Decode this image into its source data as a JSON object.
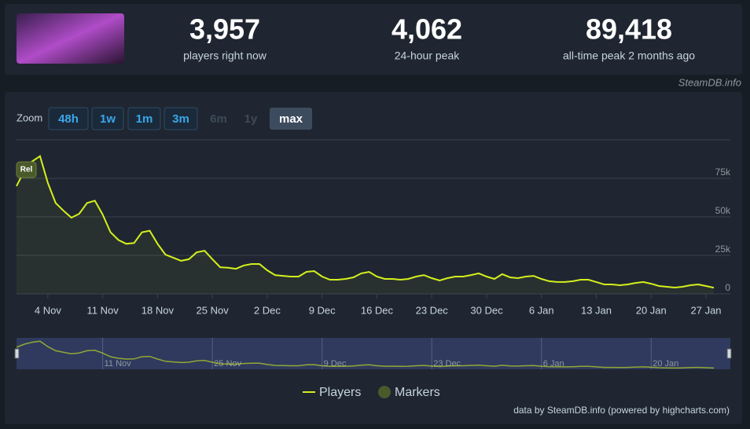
{
  "header": {
    "stats": [
      {
        "value": "3,957",
        "label": "players right now"
      },
      {
        "value": "4,062",
        "label": "24-hour peak"
      },
      {
        "value": "89,418",
        "label": "all-time peak 2 months ago"
      }
    ],
    "source": "SteamDB.info"
  },
  "zoom": {
    "label": "Zoom",
    "buttons": [
      {
        "label": "48h",
        "state": "enabled"
      },
      {
        "label": "1w",
        "state": "enabled"
      },
      {
        "label": "1m",
        "state": "enabled"
      },
      {
        "label": "3m",
        "state": "enabled"
      },
      {
        "label": "6m",
        "state": "disabled"
      },
      {
        "label": "1y",
        "state": "disabled"
      },
      {
        "label": "max",
        "state": "selected"
      }
    ]
  },
  "chart_data": {
    "type": "line",
    "categories": [
      null,
      null,
      null,
      null,
      "4 Nov",
      null,
      null,
      null,
      null,
      null,
      null,
      "11 Nov",
      null,
      null,
      null,
      null,
      null,
      null,
      "18 Nov",
      null,
      null,
      null,
      null,
      null,
      null,
      "25 Nov",
      null,
      null,
      null,
      null,
      null,
      null,
      "2 Dec",
      null,
      null,
      null,
      null,
      null,
      null,
      "9 Dec",
      null,
      null,
      null,
      null,
      null,
      null,
      "16 Dec",
      null,
      null,
      null,
      null,
      null,
      null,
      "23 Dec",
      null,
      null,
      null,
      null,
      null,
      null,
      "30 Dec",
      null,
      null,
      null,
      null,
      null,
      null,
      "6 Jan",
      null,
      null,
      null,
      null,
      null,
      null,
      "13 Jan",
      null,
      null,
      null,
      null,
      null,
      null,
      "20 Jan",
      null,
      null,
      null,
      null,
      null,
      null,
      "27 Jan",
      null
    ],
    "series": [
      {
        "name": "Players",
        "color": "#d4f01c",
        "values": [
          70000,
          80000,
          86000,
          89418,
          72000,
          59000,
          54000,
          49500,
          52000,
          59000,
          60500,
          51500,
          40000,
          35000,
          32500,
          33000,
          40000,
          41000,
          32500,
          25500,
          23500,
          21500,
          22500,
          27000,
          28000,
          22500,
          17300,
          17000,
          16300,
          18400,
          19400,
          19400,
          15300,
          12200,
          11700,
          11200,
          11200,
          14300,
          14800,
          11200,
          9200,
          9200,
          9700,
          10700,
          13300,
          14300,
          11200,
          9700,
          9700,
          9200,
          9700,
          11200,
          12200,
          10200,
          8700,
          10200,
          11200,
          11200,
          12200,
          13300,
          11200,
          9700,
          12800,
          10700,
          10200,
          11200,
          11700,
          9700,
          8200,
          7700,
          7700,
          8200,
          9200,
          9200,
          7700,
          6100,
          6100,
          5600,
          6100,
          7100,
          7700,
          6600,
          5100,
          4600,
          4100,
          4600,
          5600,
          6100,
          5100,
          4000
        ]
      }
    ],
    "markers": {
      "name": "Markers",
      "color": "#4a5a2a"
    },
    "annotation": "Rel",
    "ylim": [
      0,
      100000
    ],
    "yticks": [
      {
        "value": 0,
        "label": "0"
      },
      {
        "value": 25000,
        "label": "25k"
      },
      {
        "value": 50000,
        "label": "50k"
      },
      {
        "value": 75000,
        "label": "75k"
      }
    ],
    "grid": true,
    "navigator_labels": [
      "11 Nov",
      "25 Nov",
      "9 Dec",
      "23 Dec",
      "6 Jan",
      "20 Jan"
    ],
    "credit": "data by SteamDB.info (powered by highcharts.com)"
  }
}
